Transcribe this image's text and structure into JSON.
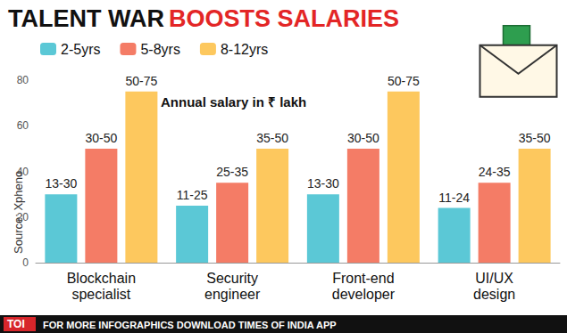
{
  "chart_data": {
    "type": "bar",
    "title": "TALENT WAR BOOSTS SALARIES",
    "annotation": "Annual salary in ₹ lakh",
    "source": "Source: Xpheno",
    "footer": [
      "TOI",
      "FOR MORE INFOGRAPHICS DOWNLOAD TIMES OF INDIA APP"
    ],
    "categories": [
      "Blockchain specialist",
      "Security engineer",
      "Front-end developer",
      "UI/UX design"
    ],
    "series": [
      {
        "name": "2-5yrs",
        "color": "#5bc8d6",
        "values": [
          30,
          25,
          30,
          24
        ],
        "value_labels": [
          "13-30",
          "11-25",
          "13-30",
          "11-24"
        ]
      },
      {
        "name": "5-8yrs",
        "color": "#f47c66",
        "values": [
          50,
          35,
          50,
          35
        ],
        "value_labels": [
          "30-50",
          "25-35",
          "30-50",
          "24-35"
        ]
      },
      {
        "name": "8-12yrs",
        "color": "#fdc85e",
        "values": [
          75,
          50,
          75,
          50
        ],
        "value_labels": [
          "50-75",
          "35-50",
          "50-75",
          "35-50"
        ]
      }
    ],
    "ylim": [
      0,
      80
    ],
    "yticks": [
      0,
      20,
      40,
      60,
      80
    ],
    "grid": false,
    "legend": "top-left",
    "data_labels": true
  }
}
